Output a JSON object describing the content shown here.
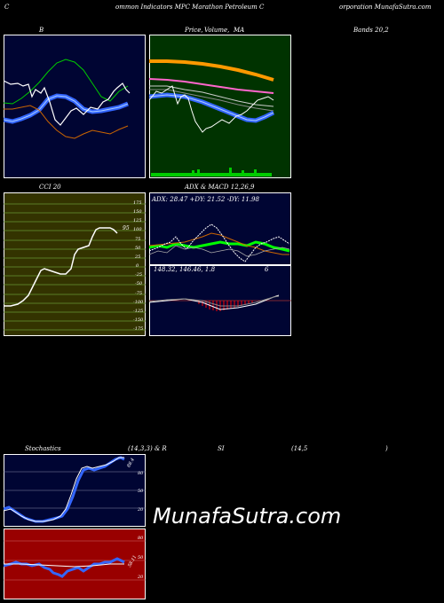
{
  "header": {
    "left": "C",
    "mid1": "ommon  Indicators MPC Marathon  Petroleum  C",
    "right": "orporation  MunafaSutra.com"
  },
  "row1": {
    "bb_title": "B",
    "price_title1": "Price,",
    "price_title2": "Volume,",
    "price_title3": "MA",
    "bands_title": "Bands 20,2"
  },
  "row2": {
    "cci_title": "CCI 20",
    "adx_title": "ADX  & MACD 12,26,9",
    "adx_values": "ADX: 28.47  +DY: 21.52  -DY: 11.98",
    "macd_values": "148.32,  146.46,  1.8",
    "macd_extra": "6",
    "cci_value": "95",
    "cci_ticks": [
      "175",
      "150",
      "125",
      "100",
      "75",
      "50",
      "25",
      "0",
      "-25",
      "-50",
      "-75",
      "-100",
      "-125",
      "-150",
      "-175"
    ]
  },
  "row3": {
    "stoch_title": "Stochastics",
    "stoch_params": "(14,3,3) & R",
    "rsi_title": "SI",
    "rsi_params": "(14,5",
    "rsi_close": ")",
    "stoch_ticks": [
      "80",
      "50",
      "20"
    ],
    "stoch_value": "88.4",
    "rsi_ticks": [
      "80",
      "50",
      "20"
    ],
    "rsi_value": "58.11"
  },
  "watermark": "MunafaSutra.com",
  "colors": {
    "panel_blue": "#000533",
    "panel_green": "#003300",
    "panel_olive": "#333300",
    "panel_red": "#990000"
  }
}
